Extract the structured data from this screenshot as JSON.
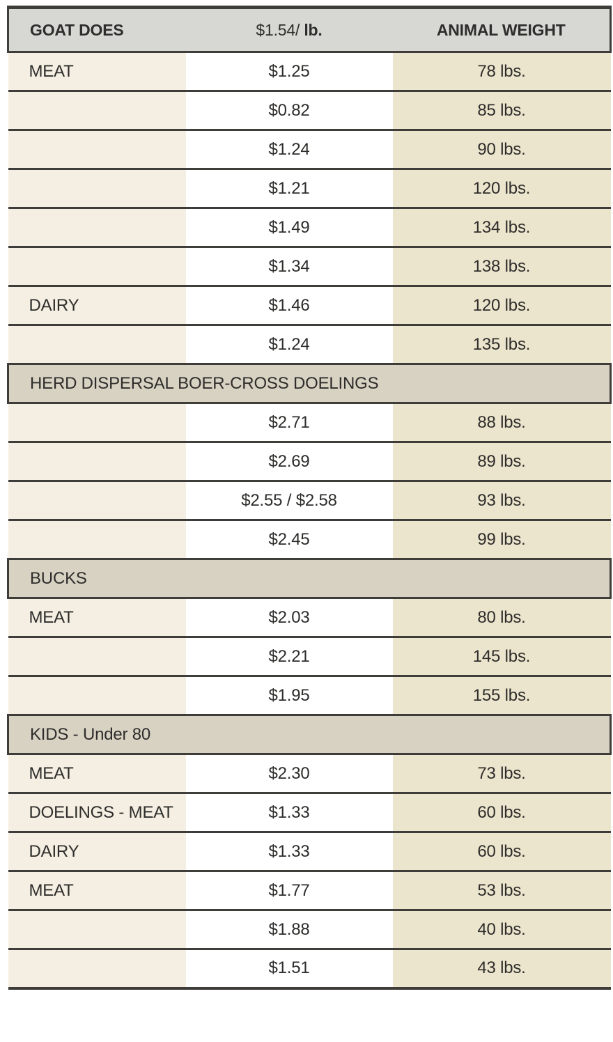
{
  "table": {
    "header": {
      "category": "GOAT DOES",
      "price_rate": "$1.54/",
      "price_unit": "lb.",
      "weight": "ANIMAL WEIGHT"
    },
    "rows": [
      {
        "type": "data",
        "label": "MEAT",
        "price": "$1.25",
        "weight": "78 lbs."
      },
      {
        "type": "data",
        "label": "",
        "price": "$0.82",
        "weight": "85 lbs."
      },
      {
        "type": "data",
        "label": "",
        "price": "$1.24",
        "weight": "90 lbs."
      },
      {
        "type": "data",
        "label": "",
        "price": "$1.21",
        "weight": "120 lbs."
      },
      {
        "type": "data",
        "label": "",
        "price": "$1.49",
        "weight": "134 lbs."
      },
      {
        "type": "data",
        "label": "",
        "price": "$1.34",
        "weight": "138 lbs."
      },
      {
        "type": "data",
        "label": "DAIRY",
        "price": "$1.46",
        "weight": "120 lbs."
      },
      {
        "type": "data",
        "label": "",
        "price": "$1.24",
        "weight": "135 lbs."
      },
      {
        "type": "section",
        "label": "HERD DISPERSAL BOER-CROSS DOELINGS"
      },
      {
        "type": "data",
        "label": "",
        "price": "$2.71",
        "weight": "88 lbs."
      },
      {
        "type": "data",
        "label": "",
        "price": "$2.69",
        "weight": "89 lbs."
      },
      {
        "type": "data",
        "label": "",
        "price": "$2.55 / $2.58",
        "weight": "93 lbs."
      },
      {
        "type": "data",
        "label": "",
        "price": "$2.45",
        "weight": "99 lbs."
      },
      {
        "type": "section",
        "label": "BUCKS"
      },
      {
        "type": "data",
        "label": "MEAT",
        "price": "$2.03",
        "weight": "80 lbs."
      },
      {
        "type": "data",
        "label": "",
        "price": "$2.21",
        "weight": "145 lbs."
      },
      {
        "type": "data",
        "label": "",
        "price": "$1.95",
        "weight": "155 lbs."
      },
      {
        "type": "section",
        "label": "KIDS - Under 80"
      },
      {
        "type": "data",
        "label": "MEAT",
        "price": "$2.30",
        "weight": "73 lbs."
      },
      {
        "type": "data",
        "label": "DOELINGS - MEAT",
        "price": "$1.33",
        "weight": "60 lbs."
      },
      {
        "type": "data",
        "label": "DAIRY",
        "price": "$1.33",
        "weight": "60 lbs."
      },
      {
        "type": "data",
        "label": "MEAT",
        "price": "$1.77",
        "weight": "53 lbs."
      },
      {
        "type": "data",
        "label": "",
        "price": "$1.88",
        "weight": "40 lbs."
      },
      {
        "type": "data",
        "label": "",
        "price": "$1.51",
        "weight": "43 lbs."
      }
    ]
  },
  "colors": {
    "header_bg": "#d7d8d3",
    "section_bg": "#d8d2c3",
    "category_col_bg": "#f4efe2",
    "price_col_bg": "#ffffff",
    "weight_col_bg": "#ece5cd",
    "border": "#3e3d3a",
    "text": "#2e2d2b",
    "page_bg": "#ffffff"
  }
}
